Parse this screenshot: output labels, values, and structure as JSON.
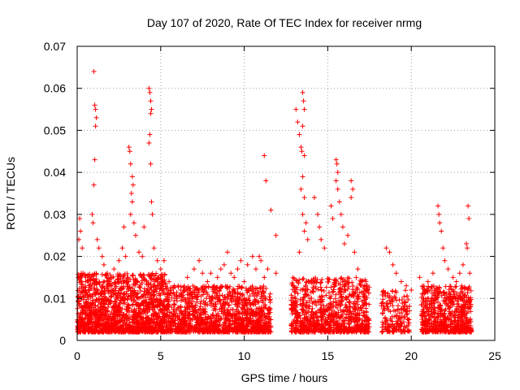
{
  "chart_data": {
    "type": "scatter",
    "title": "Day 107 of 2020, Rate Of TEC Index for receiver nrmg",
    "xlabel": "GPS time / hours",
    "ylabel": "ROTI / TECUs",
    "xlim": [
      0,
      25
    ],
    "ylim": [
      0,
      0.07
    ],
    "xticks": [
      0,
      5,
      10,
      15,
      20,
      25
    ],
    "yticks": [
      0,
      0.01,
      0.02,
      0.03,
      0.04,
      0.05,
      0.06,
      0.07
    ],
    "xtick_labels": [
      "0",
      "5",
      "10",
      "15",
      "20",
      "25"
    ],
    "ytick_labels": [
      "0",
      "0.01",
      "0.02",
      "0.03",
      "0.04",
      "0.05",
      "0.06",
      "0.07"
    ],
    "grid": true,
    "marker": "+",
    "series": [
      {
        "name": "ROTI",
        "color": "#ff0000",
        "points": [
          [
            0.1,
            0.024
          ],
          [
            0.15,
            0.029
          ],
          [
            0.2,
            0.026
          ],
          [
            0.3,
            0.022
          ],
          [
            0.35,
            0.016
          ],
          [
            0.5,
            0.014
          ],
          [
            1.0,
            0.064
          ],
          [
            1.05,
            0.056
          ],
          [
            1.1,
            0.055
          ],
          [
            1.15,
            0.053
          ],
          [
            1.1,
            0.051
          ],
          [
            1.05,
            0.043
          ],
          [
            1.0,
            0.037
          ],
          [
            0.9,
            0.03
          ],
          [
            0.95,
            0.028
          ],
          [
            1.2,
            0.024
          ],
          [
            1.3,
            0.022
          ],
          [
            1.5,
            0.02
          ],
          [
            1.6,
            0.018
          ],
          [
            1.8,
            0.016
          ],
          [
            2.0,
            0.015
          ],
          [
            2.2,
            0.017
          ],
          [
            2.5,
            0.019
          ],
          [
            2.7,
            0.022
          ],
          [
            2.8,
            0.027
          ],
          [
            2.9,
            0.02
          ],
          [
            3.1,
            0.046
          ],
          [
            3.15,
            0.045
          ],
          [
            3.2,
            0.042
          ],
          [
            3.3,
            0.039
          ],
          [
            3.35,
            0.037
          ],
          [
            3.25,
            0.035
          ],
          [
            3.3,
            0.033
          ],
          [
            3.2,
            0.03
          ],
          [
            3.4,
            0.028
          ],
          [
            3.5,
            0.025
          ],
          [
            3.7,
            0.021
          ],
          [
            3.9,
            0.02
          ],
          [
            4.0,
            0.027
          ],
          [
            4.3,
            0.06
          ],
          [
            4.35,
            0.059
          ],
          [
            4.4,
            0.057
          ],
          [
            4.45,
            0.055
          ],
          [
            4.4,
            0.054
          ],
          [
            4.35,
            0.049
          ],
          [
            4.3,
            0.047
          ],
          [
            4.4,
            0.042
          ],
          [
            4.45,
            0.033
          ],
          [
            4.5,
            0.03
          ],
          [
            4.6,
            0.022
          ],
          [
            4.8,
            0.019
          ],
          [
            5.0,
            0.017
          ],
          [
            5.2,
            0.019
          ],
          [
            5.5,
            0.014
          ],
          [
            5.8,
            0.013
          ],
          [
            6.2,
            0.012
          ],
          [
            6.6,
            0.015
          ],
          [
            7.0,
            0.017
          ],
          [
            7.3,
            0.019
          ],
          [
            7.5,
            0.016
          ],
          [
            7.8,
            0.014
          ],
          [
            8.0,
            0.016
          ],
          [
            8.2,
            0.013
          ],
          [
            8.4,
            0.015
          ],
          [
            8.6,
            0.017
          ],
          [
            8.8,
            0.018
          ],
          [
            9.0,
            0.021
          ],
          [
            9.2,
            0.016
          ],
          [
            9.4,
            0.015
          ],
          [
            9.6,
            0.017
          ],
          [
            9.8,
            0.019
          ],
          [
            10.0,
            0.014
          ],
          [
            10.2,
            0.018
          ],
          [
            10.5,
            0.02
          ],
          [
            10.7,
            0.017
          ],
          [
            10.9,
            0.02
          ],
          [
            11.0,
            0.019
          ],
          [
            11.2,
            0.044
          ],
          [
            11.3,
            0.038
          ],
          [
            11.6,
            0.031
          ],
          [
            11.9,
            0.025
          ],
          [
            11.2,
            0.015
          ],
          [
            11.4,
            0.017
          ],
          [
            11.9,
            0.016
          ],
          [
            13.1,
            0.055
          ],
          [
            13.2,
            0.052
          ],
          [
            13.3,
            0.049
          ],
          [
            13.4,
            0.046
          ],
          [
            13.5,
            0.059
          ],
          [
            13.55,
            0.057
          ],
          [
            13.6,
            0.055
          ],
          [
            13.5,
            0.051
          ],
          [
            13.45,
            0.045
          ],
          [
            13.6,
            0.044
          ],
          [
            13.5,
            0.039
          ],
          [
            13.4,
            0.036
          ],
          [
            13.6,
            0.034
          ],
          [
            13.5,
            0.03
          ],
          [
            13.7,
            0.028
          ],
          [
            13.6,
            0.026
          ],
          [
            13.8,
            0.024
          ],
          [
            13.3,
            0.021
          ],
          [
            14.2,
            0.034
          ],
          [
            14.4,
            0.03
          ],
          [
            14.5,
            0.027
          ],
          [
            14.6,
            0.024
          ],
          [
            14.8,
            0.022
          ],
          [
            15.2,
            0.032
          ],
          [
            15.3,
            0.029
          ],
          [
            15.5,
            0.043
          ],
          [
            15.55,
            0.042
          ],
          [
            15.6,
            0.04
          ],
          [
            15.5,
            0.038
          ],
          [
            15.6,
            0.036
          ],
          [
            15.7,
            0.033
          ],
          [
            15.8,
            0.03
          ],
          [
            15.9,
            0.027
          ],
          [
            16.0,
            0.023
          ],
          [
            16.2,
            0.025
          ],
          [
            16.4,
            0.038
          ],
          [
            16.5,
            0.036
          ],
          [
            16.4,
            0.034
          ],
          [
            16.6,
            0.021
          ],
          [
            16.8,
            0.017
          ],
          [
            17.0,
            0.014
          ],
          [
            17.3,
            0.012
          ],
          [
            18.5,
            0.022
          ],
          [
            18.7,
            0.021
          ],
          [
            18.9,
            0.018
          ],
          [
            19.1,
            0.016
          ],
          [
            19.4,
            0.014
          ],
          [
            19.7,
            0.013
          ],
          [
            20.0,
            0.012
          ],
          [
            20.5,
            0.015
          ],
          [
            20.8,
            0.012
          ],
          [
            21.0,
            0.014
          ],
          [
            21.3,
            0.016
          ],
          [
            21.6,
            0.032
          ],
          [
            21.65,
            0.03
          ],
          [
            21.7,
            0.028
          ],
          [
            21.8,
            0.026
          ],
          [
            21.9,
            0.022
          ],
          [
            22.0,
            0.019
          ],
          [
            22.2,
            0.017
          ],
          [
            22.5,
            0.015
          ],
          [
            22.7,
            0.014
          ],
          [
            22.9,
            0.016
          ],
          [
            23.1,
            0.018
          ],
          [
            23.3,
            0.023
          ],
          [
            23.35,
            0.022
          ],
          [
            23.4,
            0.032
          ],
          [
            23.45,
            0.029
          ],
          [
            23.5,
            0.016
          ]
        ],
        "noise_clusters": [
          {
            "x_range": [
              0,
              5.3
            ],
            "y_range": [
              0.002,
              0.016
            ],
            "count": 1500
          },
          {
            "x_range": [
              5.3,
              11.6
            ],
            "y_range": [
              0.002,
              0.013
            ],
            "count": 1300
          },
          {
            "x_range": [
              12.8,
              17.5
            ],
            "y_range": [
              0.002,
              0.015
            ],
            "count": 900
          },
          {
            "x_range": [
              18.2,
              19.9
            ],
            "y_range": [
              0.002,
              0.012
            ],
            "count": 180
          },
          {
            "x_range": [
              20.6,
              23.6
            ],
            "y_range": [
              0.002,
              0.013
            ],
            "count": 650
          }
        ]
      }
    ]
  }
}
